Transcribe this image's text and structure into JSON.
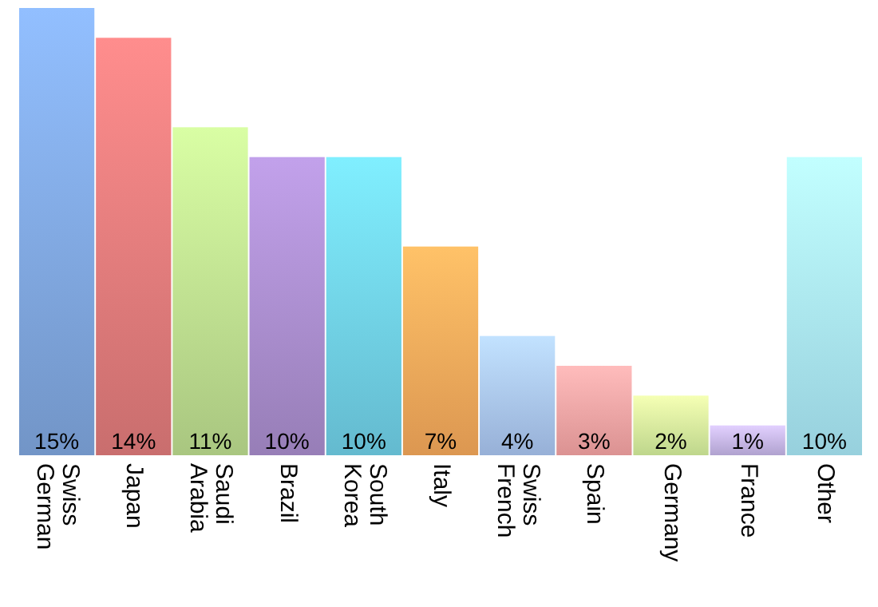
{
  "chart_data": {
    "type": "bar",
    "categories": [
      "Swiss German",
      "Japan",
      "Saudi Arabia",
      "Brazil",
      "South Korea",
      "Italy",
      "Swiss French",
      "Spain",
      "Germany",
      "France",
      "Other"
    ],
    "values": [
      15,
      14,
      11,
      10,
      10,
      7,
      4,
      3,
      2,
      1,
      10
    ],
    "value_labels": [
      "15%",
      "14%",
      "11%",
      "10%",
      "10%",
      "7%",
      "4%",
      "3%",
      "2%",
      "1%",
      "10%"
    ],
    "colors": [
      "#7fa6de",
      "#e07a7a",
      "#bcdc8e",
      "#a88ccc",
      "#6fcfe6",
      "#f5a85a",
      "#a8c4ef",
      "#f4a3a3",
      "#d4ee9c",
      "#c4b4e6",
      "#a8e8f6"
    ]
  }
}
